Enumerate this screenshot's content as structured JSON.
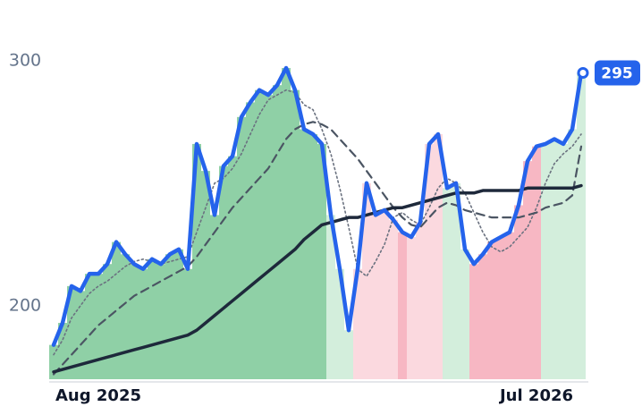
{
  "chart_data": {
    "type": "line",
    "categories": [
      null,
      null,
      null,
      null,
      null,
      "Aug 2025",
      null,
      null,
      null,
      null,
      null,
      null,
      null,
      null,
      null,
      null,
      null,
      null,
      null,
      null,
      null,
      null,
      null,
      null,
      null,
      null,
      null,
      null,
      null,
      null,
      null,
      null,
      null,
      null,
      null,
      null,
      null,
      null,
      null,
      null,
      null,
      null,
      null,
      null,
      null,
      null,
      null,
      null,
      null,
      null,
      null,
      null,
      null,
      null,
      "Jul 2026",
      null,
      null,
      null,
      null,
      null
    ],
    "ylim": [
      170,
      320
    ],
    "yticks": [
      200,
      300
    ],
    "grid": false,
    "shade_colors": [
      "#8fd0a6",
      "#8fd0a6",
      "#8fd0a6",
      "#8fd0a6",
      "#8fd0a6",
      "#8fd0a6",
      "#8fd0a6",
      "#8fd0a6",
      "#8fd0a6",
      "#8fd0a6",
      "#8fd0a6",
      "#8fd0a6",
      "#8fd0a6",
      "#8fd0a6",
      "#8fd0a6",
      "#8fd0a6",
      "#8fd0a6",
      "#8fd0a6",
      "#8fd0a6",
      "#8fd0a6",
      "#8fd0a6",
      "#8fd0a6",
      "#8fd0a6",
      "#8fd0a6",
      "#8fd0a6",
      "#8fd0a6",
      "#8fd0a6",
      "#8fd0a6",
      "#8fd0a6",
      "#8fd0a6",
      "#8fd0a6",
      "#d3eedc",
      "#d3eedc",
      "#d3eedc",
      "#fbd9df",
      "#fbd9df",
      "#fbd9df",
      "#fbd9df",
      "#fbd9df",
      "#f7b7c3",
      "#fbd9df",
      "#fbd9df",
      "#fbd9df",
      "#fbd9df",
      "#d3eedc",
      "#d3eedc",
      "#d3eedc",
      "#f7b7c3",
      "#f7b7c3",
      "#f7b7c3",
      "#f7b7c3",
      "#f7b7c3",
      "#f7b7c3",
      "#f7b7c3",
      "#f7b7c3",
      "#d3eedc",
      "#d3eedc",
      "#d3eedc",
      "#d3eedc",
      "#d3eedc"
    ],
    "series": [
      {
        "color": "#6b7280",
        "style": "dotted",
        "values": [
          180,
          186,
          195,
          200,
          205,
          208,
          210,
          213,
          216,
          218,
          219,
          218,
          217,
          218,
          219,
          220,
          230,
          240,
          250,
          252,
          256,
          262,
          270,
          278,
          284,
          286,
          288,
          287,
          282,
          280,
          272,
          262,
          248,
          232,
          215,
          212,
          218,
          225,
          236,
          238,
          235,
          233,
          240,
          248,
          252,
          250,
          246,
          238,
          230,
          224,
          222,
          224,
          228,
          232,
          240,
          250,
          258,
          262,
          265,
          270
        ]
      },
      {
        "color": "#4b5563",
        "style": "dashed",
        "values": [
          172,
          176,
          180,
          184,
          188,
          192,
          195,
          198,
          201,
          204,
          206,
          208,
          210,
          212,
          214,
          216,
          220,
          225,
          230,
          235,
          240,
          244,
          248,
          252,
          256,
          262,
          268,
          272,
          274,
          275,
          274,
          272,
          268,
          264,
          260,
          255,
          250,
          245,
          240,
          236,
          233,
          232,
          236,
          240,
          242,
          241,
          239,
          238,
          237,
          236,
          236,
          236,
          236,
          237,
          238,
          240,
          241,
          242,
          245,
          265
        ]
      },
      {
        "color": "#1e293b",
        "style": "solid",
        "values": [
          173,
          174,
          175,
          176,
          177,
          178,
          179,
          180,
          181,
          182,
          183,
          184,
          185,
          186,
          187,
          188,
          190,
          193,
          196,
          199,
          202,
          205,
          208,
          211,
          214,
          217,
          220,
          223,
          227,
          230,
          233,
          234,
          235,
          236,
          236,
          237,
          238,
          239,
          240,
          240,
          241,
          242,
          243,
          244,
          245,
          246,
          246,
          246,
          247,
          247,
          247,
          247,
          247,
          248,
          248,
          248,
          248,
          248,
          248,
          249
        ]
      },
      {
        "color": "#2563eb",
        "style": "price",
        "values": [
          184,
          193,
          208,
          206,
          213,
          213,
          217,
          226,
          221,
          217,
          215,
          219,
          217,
          221,
          223,
          215,
          266,
          255,
          237,
          257,
          261,
          277,
          283,
          288,
          286,
          290,
          297,
          288,
          272,
          270,
          266,
          237,
          215,
          190,
          215,
          250,
          237,
          239,
          235,
          230,
          228,
          234,
          266,
          270,
          248,
          250,
          223,
          217,
          221,
          226,
          228,
          230,
          241,
          259,
          265,
          266,
          268,
          266,
          272,
          295
        ]
      }
    ]
  }
}
